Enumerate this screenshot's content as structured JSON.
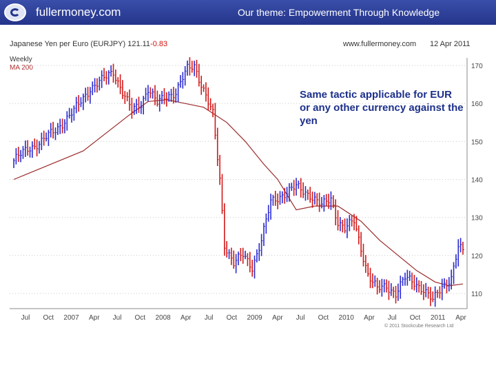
{
  "header": {
    "brand": "fullermoney.com",
    "theme": "Our theme: Empowerment Through Knowledge",
    "logo_icon": "globe-logo-icon"
  },
  "chart_meta": {
    "title_main": "Japanese Yen per Euro (EURJPY) 121.11",
    "title_change": "-0.83",
    "source": "www.fullermoney.com",
    "date": "12 Apr 2011",
    "legend_weekly": "Weekly",
    "legend_ma": "MA 200",
    "credit": "© 2011 Stockcube Research Ltd",
    "note": "Same tactic applicable for EUR or any other currency against the yen"
  },
  "colors": {
    "header_bg": "#2b3c94",
    "up_bar": "#2a2ad0",
    "down_bar": "#d01818",
    "ma_line": "#9a2a2a",
    "note_text": "#1c2f8a",
    "grid": "#c8c8c8"
  },
  "chart_data": {
    "type": "bar",
    "subtype": "weekly price bars with moving average",
    "title": "Japanese Yen per Euro (EURJPY) 121.11 -0.83",
    "ylim": [
      106,
      172
    ],
    "yticks": [
      110,
      120,
      130,
      140,
      150,
      160,
      170
    ],
    "y_axis_side": "right",
    "grid": true,
    "xticks": [
      "Jul",
      "Oct",
      "2007",
      "Apr",
      "Jul",
      "Oct",
      "2008",
      "Apr",
      "Jul",
      "Oct",
      "2009",
      "Apr",
      "Jul",
      "Oct",
      "2010",
      "Apr",
      "Jul",
      "Oct",
      "2011",
      "Apr"
    ],
    "price_keypoints": [
      {
        "t": 0,
        "v": 145
      },
      {
        "t": 6,
        "v": 148
      },
      {
        "t": 12,
        "v": 150
      },
      {
        "t": 18,
        "v": 153
      },
      {
        "t": 26,
        "v": 158
      },
      {
        "t": 33,
        "v": 164
      },
      {
        "t": 38,
        "v": 166
      },
      {
        "t": 43,
        "v": 168.5
      },
      {
        "t": 47,
        "v": 163
      },
      {
        "t": 51,
        "v": 158
      },
      {
        "t": 55,
        "v": 160
      },
      {
        "t": 58,
        "v": 164
      },
      {
        "t": 62,
        "v": 160
      },
      {
        "t": 66,
        "v": 162
      },
      {
        "t": 70,
        "v": 163
      },
      {
        "t": 75,
        "v": 169
      },
      {
        "t": 78,
        "v": 170
      },
      {
        "t": 83,
        "v": 162
      },
      {
        "t": 86,
        "v": 157
      },
      {
        "t": 89,
        "v": 140
      },
      {
        "t": 91,
        "v": 123
      },
      {
        "t": 95,
        "v": 118
      },
      {
        "t": 99,
        "v": 120
      },
      {
        "t": 103,
        "v": 117
      },
      {
        "t": 107,
        "v": 124
      },
      {
        "t": 111,
        "v": 134
      },
      {
        "t": 116,
        "v": 136
      },
      {
        "t": 122,
        "v": 138
      },
      {
        "t": 128,
        "v": 136
      },
      {
        "t": 133,
        "v": 133
      },
      {
        "t": 137,
        "v": 135
      },
      {
        "t": 140,
        "v": 129
      },
      {
        "t": 143,
        "v": 127
      },
      {
        "t": 147,
        "v": 129
      },
      {
        "t": 150,
        "v": 122
      },
      {
        "t": 153,
        "v": 115
      },
      {
        "t": 157,
        "v": 111
      },
      {
        "t": 161,
        "v": 112
      },
      {
        "t": 165,
        "v": 110
      },
      {
        "t": 169,
        "v": 114
      },
      {
        "t": 173,
        "v": 113
      },
      {
        "t": 177,
        "v": 111
      },
      {
        "t": 181,
        "v": 108
      },
      {
        "t": 185,
        "v": 112
      },
      {
        "t": 189,
        "v": 114
      },
      {
        "t": 192,
        "v": 122
      },
      {
        "t": 194,
        "v": 121
      }
    ],
    "ma_keypoints": [
      {
        "t": 0,
        "v": 140
      },
      {
        "t": 30,
        "v": 147.5
      },
      {
        "t": 50,
        "v": 157
      },
      {
        "t": 58,
        "v": 160.5
      },
      {
        "t": 66,
        "v": 161
      },
      {
        "t": 74,
        "v": 160
      },
      {
        "t": 82,
        "v": 159
      },
      {
        "t": 92,
        "v": 155
      },
      {
        "t": 100,
        "v": 150
      },
      {
        "t": 108,
        "v": 144
      },
      {
        "t": 114,
        "v": 140
      },
      {
        "t": 122,
        "v": 132
      },
      {
        "t": 130,
        "v": 133
      },
      {
        "t": 140,
        "v": 133
      },
      {
        "t": 150,
        "v": 129
      },
      {
        "t": 158,
        "v": 124
      },
      {
        "t": 166,
        "v": 120
      },
      {
        "t": 174,
        "v": 116
      },
      {
        "t": 182,
        "v": 113
      },
      {
        "t": 188,
        "v": 112
      },
      {
        "t": 194,
        "v": 112.5
      }
    ]
  }
}
